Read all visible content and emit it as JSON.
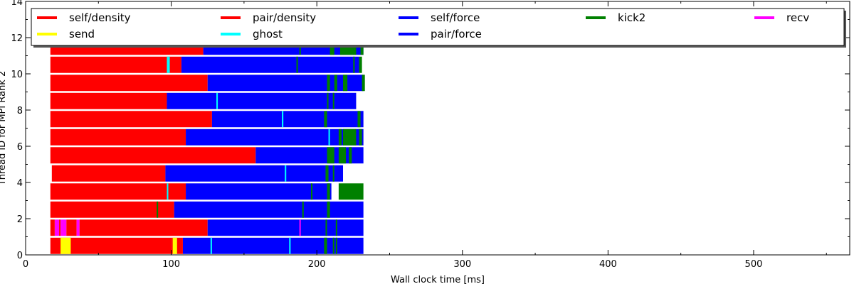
{
  "chart_data": {
    "type": "bar",
    "orientation": "horizontal-timeline",
    "xlabel": "Wall clock time [ms]",
    "ylabel": "Thread ID for MPI Rank 2",
    "xlim": [
      0,
      566
    ],
    "ylim": [
      0,
      14
    ],
    "xticks": [
      0,
      100,
      200,
      300,
      400,
      500
    ],
    "yticks": [
      0,
      2,
      4,
      6,
      8,
      10,
      12,
      14
    ],
    "grid": false,
    "legend_position": "top",
    "legend": [
      {
        "name": "self/density",
        "color": "#ff0000"
      },
      {
        "name": "pair/density",
        "color": "#ff0000"
      },
      {
        "name": "self/force",
        "color": "#0000ff"
      },
      {
        "name": "kick2",
        "color": "#008000"
      },
      {
        "name": "recv",
        "color": "#ff00ff"
      },
      {
        "name": "send",
        "color": "#ffff00"
      },
      {
        "name": "ghost",
        "color": "#00ffff"
      },
      {
        "name": "pair/force",
        "color": "#0000ff"
      }
    ],
    "colors": {
      "density": "#ff0000",
      "force": "#0000ff",
      "kick2": "#008000",
      "recv": "#ff00ff",
      "send": "#ffff00",
      "ghost": "#00ffff"
    },
    "threads": [
      {
        "thread": 0,
        "segments": [
          [
            17,
            100,
            "density"
          ],
          [
            24,
            31,
            "send"
          ],
          [
            100,
            108,
            "density"
          ],
          [
            101,
            104,
            "send"
          ],
          [
            108,
            232,
            "force"
          ],
          [
            127,
            128,
            "ghost"
          ],
          [
            181,
            182,
            "ghost"
          ],
          [
            205,
            207,
            "kick2"
          ],
          [
            211,
            212,
            "kick2"
          ],
          [
            213,
            214,
            "kick2"
          ]
        ]
      },
      {
        "thread": 1,
        "segments": [
          [
            17,
            20,
            "density"
          ],
          [
            20,
            23,
            "recv"
          ],
          [
            23,
            24,
            "density"
          ],
          [
            24,
            28,
            "recv"
          ],
          [
            28,
            35,
            "density"
          ],
          [
            35,
            37,
            "recv"
          ],
          [
            37,
            125,
            "density"
          ],
          [
            125,
            232,
            "force"
          ],
          [
            188,
            189,
            "recv"
          ],
          [
            206,
            207,
            "kick2"
          ],
          [
            213,
            214,
            "kick2"
          ]
        ]
      },
      {
        "thread": 2,
        "segments": [
          [
            17,
            102,
            "density"
          ],
          [
            90,
            91,
            "kick2"
          ],
          [
            102,
            232,
            "force"
          ],
          [
            190,
            191,
            "kick2"
          ],
          [
            207,
            209,
            "kick2"
          ]
        ]
      },
      {
        "thread": 3,
        "segments": [
          [
            17,
            110,
            "density"
          ],
          [
            97,
            98,
            "ghost"
          ],
          [
            110,
            210,
            "force"
          ],
          [
            196,
            197,
            "kick2"
          ],
          [
            207,
            209,
            "kick2"
          ],
          [
            215,
            232,
            "kick2"
          ]
        ]
      },
      {
        "thread": 4,
        "segments": [
          [
            18,
            96,
            "density"
          ],
          [
            96,
            218,
            "force"
          ],
          [
            178,
            179,
            "ghost"
          ],
          [
            206,
            208,
            "kick2"
          ],
          [
            211,
            212,
            "kick2"
          ]
        ]
      },
      {
        "thread": 5,
        "segments": [
          [
            17,
            158,
            "density"
          ],
          [
            158,
            232,
            "force"
          ],
          [
            207,
            212,
            "kick2"
          ],
          [
            215,
            220,
            "kick2"
          ],
          [
            222,
            224,
            "kick2"
          ]
        ]
      },
      {
        "thread": 6,
        "segments": [
          [
            17,
            110,
            "density"
          ],
          [
            110,
            232,
            "force"
          ],
          [
            208,
            209,
            "ghost"
          ],
          [
            215,
            217,
            "kick2"
          ],
          [
            218,
            227,
            "kick2"
          ],
          [
            229,
            231,
            "kick2"
          ]
        ]
      },
      {
        "thread": 7,
        "segments": [
          [
            17,
            128,
            "density"
          ],
          [
            128,
            232,
            "force"
          ],
          [
            176,
            177,
            "ghost"
          ],
          [
            205,
            207,
            "kick2"
          ],
          [
            228,
            230,
            "kick2"
          ]
        ]
      },
      {
        "thread": 8,
        "segments": [
          [
            17,
            97,
            "density"
          ],
          [
            97,
            227,
            "force"
          ],
          [
            131,
            132,
            "ghost"
          ],
          [
            207,
            208,
            "kick2"
          ],
          [
            211,
            212,
            "kick2"
          ]
        ]
      },
      {
        "thread": 9,
        "segments": [
          [
            17,
            125,
            "density"
          ],
          [
            125,
            232,
            "force"
          ],
          [
            207,
            209,
            "kick2"
          ],
          [
            212,
            214,
            "kick2"
          ],
          [
            218,
            221,
            "kick2"
          ],
          [
            231,
            233,
            "kick2"
          ]
        ]
      },
      {
        "thread": 10,
        "segments": [
          [
            17,
            107,
            "density"
          ],
          [
            97,
            99,
            "ghost"
          ],
          [
            107,
            229,
            "force"
          ],
          [
            186,
            187,
            "kick2"
          ],
          [
            225,
            226,
            "kick2"
          ],
          [
            229,
            231,
            "kick2"
          ]
        ]
      },
      {
        "thread": 11,
        "segments": [
          [
            17,
            122,
            "density"
          ],
          [
            122,
            232,
            "force"
          ],
          [
            188,
            189,
            "kick2"
          ],
          [
            209,
            212,
            "kick2"
          ],
          [
            216,
            227,
            "kick2"
          ],
          [
            230,
            232,
            "kick2"
          ]
        ]
      }
    ]
  }
}
